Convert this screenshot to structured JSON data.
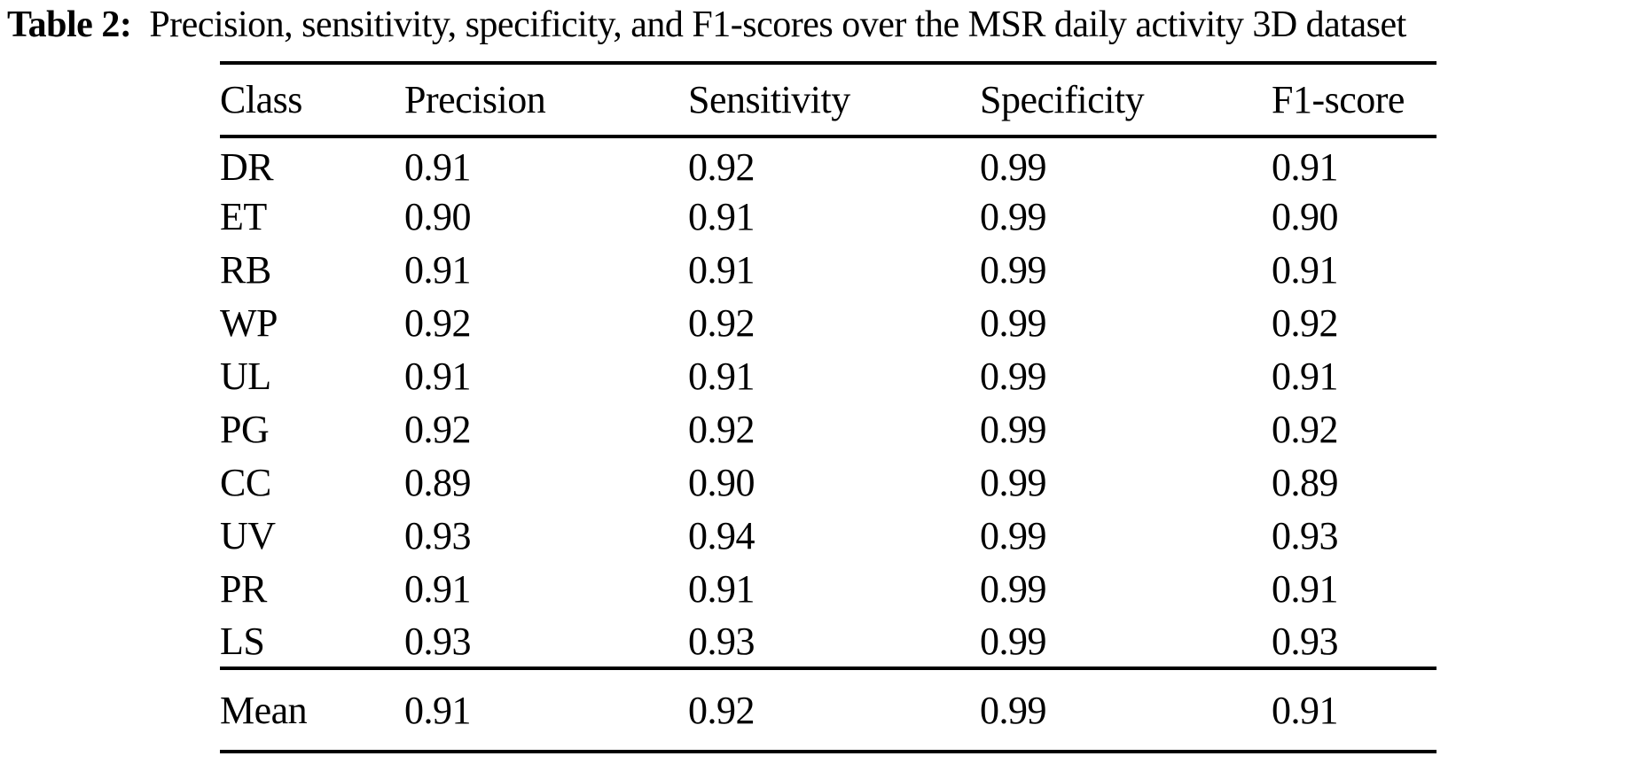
{
  "caption": {
    "label": "Table 2:",
    "text": "Precision, sensitivity, specificity, and F1-scores over the MSR daily activity 3D dataset"
  },
  "table": {
    "headers": [
      "Class",
      "Precision",
      "Sensitivity",
      "Specificity",
      "F1-score"
    ],
    "rows": [
      {
        "class": "DR",
        "precision": "0.91",
        "sensitivity": "0.92",
        "specificity": "0.99",
        "f1": "0.91"
      },
      {
        "class": "ET",
        "precision": "0.90",
        "sensitivity": "0.91",
        "specificity": "0.99",
        "f1": "0.90"
      },
      {
        "class": "RB",
        "precision": "0.91",
        "sensitivity": "0.91",
        "specificity": "0.99",
        "f1": "0.91"
      },
      {
        "class": "WP",
        "precision": "0.92",
        "sensitivity": "0.92",
        "specificity": "0.99",
        "f1": "0.92"
      },
      {
        "class": "UL",
        "precision": "0.91",
        "sensitivity": "0.91",
        "specificity": "0.99",
        "f1": "0.91"
      },
      {
        "class": "PG",
        "precision": "0.92",
        "sensitivity": "0.92",
        "specificity": "0.99",
        "f1": "0.92"
      },
      {
        "class": "CC",
        "precision": "0.89",
        "sensitivity": "0.90",
        "specificity": "0.99",
        "f1": "0.89"
      },
      {
        "class": "UV",
        "precision": "0.93",
        "sensitivity": "0.94",
        "specificity": "0.99",
        "f1": "0.93"
      },
      {
        "class": "PR",
        "precision": "0.91",
        "sensitivity": "0.91",
        "specificity": "0.99",
        "f1": "0.91"
      },
      {
        "class": "LS",
        "precision": "0.93",
        "sensitivity": "0.93",
        "specificity": "0.99",
        "f1": "0.93"
      }
    ],
    "mean_row": {
      "class": "Mean",
      "precision": "0.91",
      "sensitivity": "0.92",
      "specificity": "0.99",
      "f1": "0.91"
    }
  },
  "colors": {
    "text": "#000000",
    "background": "#ffffff",
    "rule": "#000000"
  }
}
